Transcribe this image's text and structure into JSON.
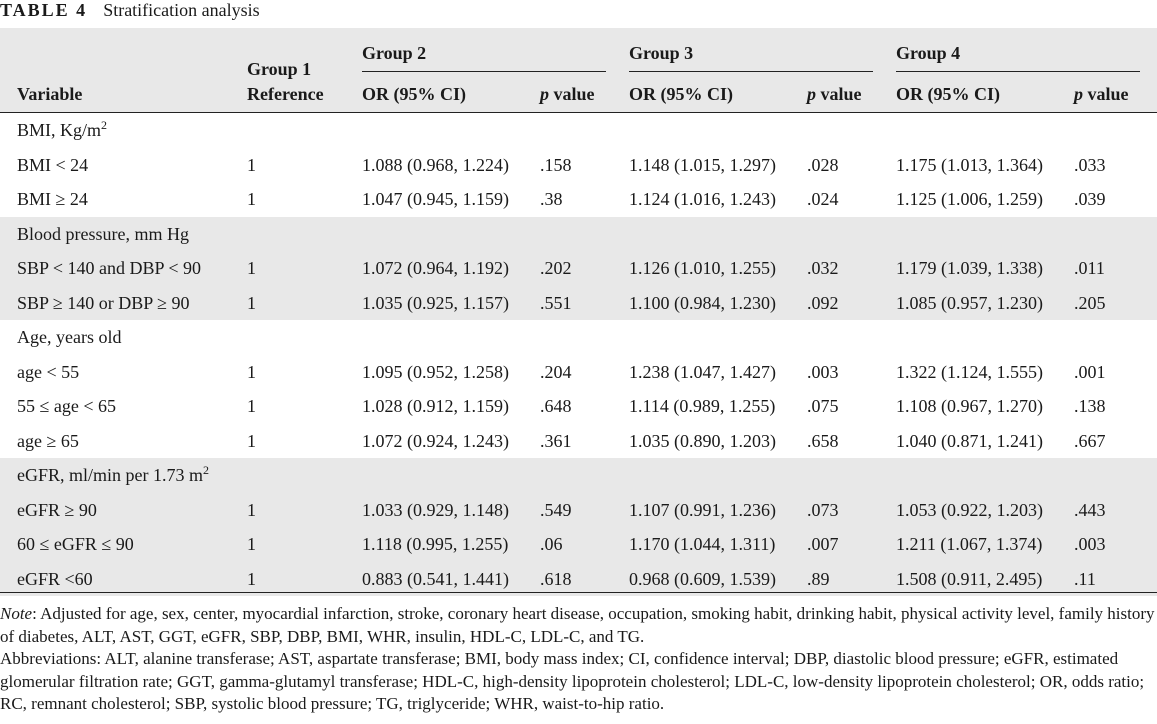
{
  "caption": {
    "label": "TABLE 4",
    "title": "Stratification analysis"
  },
  "header": {
    "variable": "Variable",
    "group1_line1": "Group 1",
    "group1_line2": "Reference",
    "group2": "Group 2",
    "group3": "Group 3",
    "group4": "Group 4",
    "or_label": "OR (95% CI)",
    "p_letter": "p",
    "p_rest": " value"
  },
  "sections": [
    {
      "title": "BMI, Kg/m",
      "sup": "2",
      "rows": [
        {
          "label": "BMI < 24",
          "ref": "1",
          "or2": "1.088 (0.968, 1.224)",
          "p2": ".158",
          "or3": "1.148 (1.015, 1.297)",
          "p3": ".028",
          "or4": "1.175 (1.013, 1.364)",
          "p4": ".033"
        },
        {
          "label": "BMI ≥ 24",
          "ref": "1",
          "or2": "1.047 (0.945, 1.159)",
          "p2": ".38",
          "or3": "1.124 (1.016, 1.243)",
          "p3": ".024",
          "or4": "1.125 (1.006, 1.259)",
          "p4": ".039"
        }
      ]
    },
    {
      "title": "Blood pressure, mm Hg",
      "sup": "",
      "rows": [
        {
          "label": "SBP < 140 and DBP < 90",
          "ref": "1",
          "or2": "1.072 (0.964, 1.192)",
          "p2": ".202",
          "or3": "1.126 (1.010, 1.255)",
          "p3": ".032",
          "or4": "1.179 (1.039, 1.338)",
          "p4": ".011"
        },
        {
          "label": "SBP ≥ 140 or DBP ≥ 90",
          "ref": "1",
          "or2": "1.035 (0.925, 1.157)",
          "p2": ".551",
          "or3": "1.100 (0.984, 1.230)",
          "p3": ".092",
          "or4": "1.085 (0.957, 1.230)",
          "p4": ".205"
        }
      ]
    },
    {
      "title": "Age, years old",
      "sup": "",
      "rows": [
        {
          "label": "age < 55",
          "ref": "1",
          "or2": "1.095 (0.952, 1.258)",
          "p2": ".204",
          "or3": "1.238 (1.047, 1.427)",
          "p3": ".003",
          "or4": "1.322 (1.124, 1.555)",
          "p4": ".001"
        },
        {
          "label": "55 ≤ age < 65",
          "ref": "1",
          "or2": "1.028 (0.912, 1.159)",
          "p2": ".648",
          "or3": "1.114 (0.989, 1.255)",
          "p3": ".075",
          "or4": "1.108 (0.967, 1.270)",
          "p4": ".138"
        },
        {
          "label": "age ≥ 65",
          "ref": "1",
          "or2": "1.072 (0.924, 1.243)",
          "p2": ".361",
          "or3": "1.035 (0.890, 1.203)",
          "p3": ".658",
          "or4": "1.040 (0.871, 1.241)",
          "p4": ".667"
        }
      ]
    },
    {
      "title": "eGFR, ml/min per 1.73 m",
      "sup": "2",
      "rows": [
        {
          "label": "eGFR ≥ 90",
          "ref": "1",
          "or2": "1.033 (0.929, 1.148)",
          "p2": ".549",
          "or3": "1.107 (0.991, 1.236)",
          "p3": ".073",
          "or4": "1.053 (0.922, 1.203)",
          "p4": ".443"
        },
        {
          "label": "60 ≤ eGFR ≤ 90",
          "ref": "1",
          "or2": "1.118 (0.995, 1.255)",
          "p2": ".06",
          "or3": "1.170 (1.044, 1.311)",
          "p3": ".007",
          "or4": "1.211 (1.067, 1.374)",
          "p4": ".003"
        },
        {
          "label": "eGFR <60",
          "ref": "1",
          "or2": "0.883 (0.541, 1.441)",
          "p2": ".618",
          "or3": "0.968 (0.609, 1.539)",
          "p3": ".89",
          "or4": "1.508 (0.911, 2.495)",
          "p4": ".11"
        }
      ]
    }
  ],
  "notes": {
    "note_label": "Note",
    "note_text": ": Adjusted for age, sex, center, myocardial infarction, stroke, coronary heart disease, occupation, smoking habit, drinking habit, physical activity level, family history of diabetes, ALT, AST, GGT, eGFR, SBP, DBP, BMI, WHR, insulin, HDL-C, LDL-C, and TG.",
    "abbreviations": "Abbreviations: ALT, alanine transferase; AST, aspartate transferase; BMI, body mass index; CI, confidence interval; DBP, diastolic blood pressure; eGFR, estimated glomerular filtration rate; GGT, gamma-glutamyl transferase; HDL-C, high-density lipoprotein cholesterol; LDL-C, low-density lipoprotein cholesterol; OR, odds ratio; RC, remnant cholesterol; SBP, systolic blood pressure; TG, triglyceride; WHR, waist-to-hip ratio."
  },
  "colors": {
    "band": "#e8e8e8",
    "rule": "#222222"
  }
}
